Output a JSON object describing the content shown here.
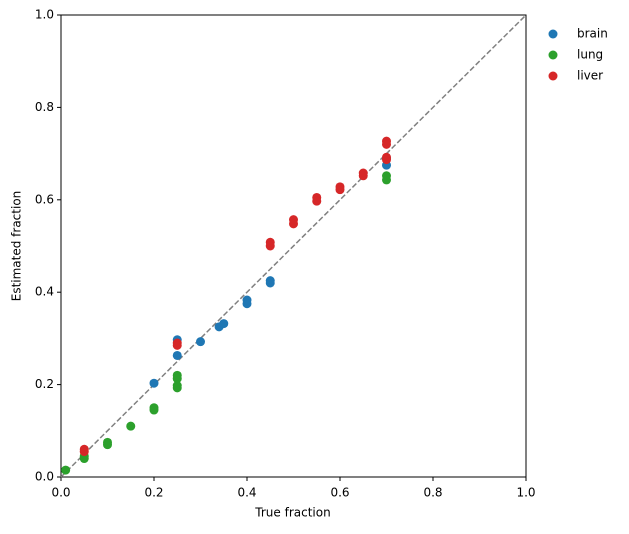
{
  "chart_data": {
    "type": "scatter",
    "x_label": "True fraction",
    "y_label": "Estimated fraction",
    "xlim": [
      0,
      1
    ],
    "ylim": [
      0,
      1
    ],
    "xticks": [
      {
        "value": 0,
        "label": "0.0"
      },
      0.2,
      0.4,
      0.6,
      0.8,
      {
        "value": 1,
        "label": "1.0"
      }
    ],
    "yticks": [
      {
        "value": 0,
        "label": "0.0"
      },
      0.2,
      0.4,
      0.6,
      0.8,
      {
        "value": 1,
        "label": "1.0"
      }
    ],
    "grid": false,
    "legend": "outside-upper-right",
    "reference_line": "identity",
    "series": [
      {
        "name": "brain",
        "color": "#1f77b4",
        "x": [
          0.2,
          0.25,
          0.25,
          0.3,
          0.34,
          0.35,
          0.4,
          0.4,
          0.45,
          0.45,
          0.7,
          0.7
        ],
        "values": [
          0.203,
          0.297,
          0.263,
          0.293,
          0.325,
          0.332,
          0.383,
          0.375,
          0.425,
          0.42,
          0.675,
          0.69
        ]
      },
      {
        "name": "lung",
        "color": "#2ca02c",
        "x": [
          0.01,
          0.05,
          0.05,
          0.1,
          0.1,
          0.15,
          0.2,
          0.2,
          0.25,
          0.25,
          0.25,
          0.25,
          0.7,
          0.7
        ],
        "values": [
          0.015,
          0.04,
          0.045,
          0.075,
          0.07,
          0.11,
          0.15,
          0.145,
          0.22,
          0.213,
          0.198,
          0.193,
          0.652,
          0.643
        ]
      },
      {
        "name": "liver",
        "color": "#d62728",
        "x": [
          0.05,
          0.05,
          0.25,
          0.25,
          0.45,
          0.45,
          0.5,
          0.5,
          0.55,
          0.55,
          0.6,
          0.6,
          0.65,
          0.65,
          0.7,
          0.7,
          0.7,
          0.7
        ],
        "values": [
          0.06,
          0.055,
          0.29,
          0.285,
          0.508,
          0.5,
          0.557,
          0.548,
          0.605,
          0.597,
          0.628,
          0.622,
          0.658,
          0.652,
          0.727,
          0.72,
          0.692,
          0.687
        ]
      }
    ]
  }
}
